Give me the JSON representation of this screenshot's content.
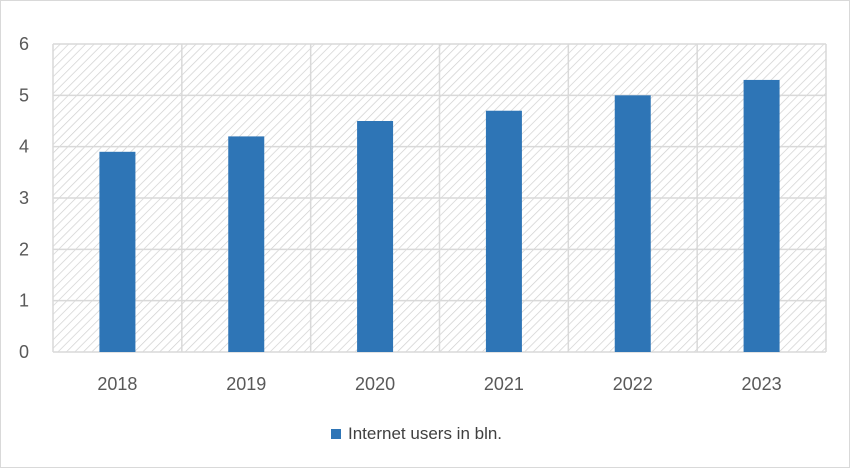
{
  "chart_data": {
    "type": "bar",
    "categories": [
      "2018",
      "2019",
      "2020",
      "2021",
      "2022",
      "2023"
    ],
    "series": [
      {
        "name": "Internet users in bln.",
        "values": [
          3.9,
          4.2,
          4.5,
          4.7,
          5.0,
          5.3
        ]
      }
    ],
    "y_ticks": [
      "0",
      "1",
      "2",
      "3",
      "4",
      "5",
      "6"
    ],
    "ylim": [
      0,
      6
    ],
    "grid": true,
    "plot_background": "hatched",
    "legend_position": "bottom",
    "colors": {
      "bar": "#2e75b6",
      "grid": "#d9d9d9",
      "hatch": "#cfcfcf"
    }
  }
}
